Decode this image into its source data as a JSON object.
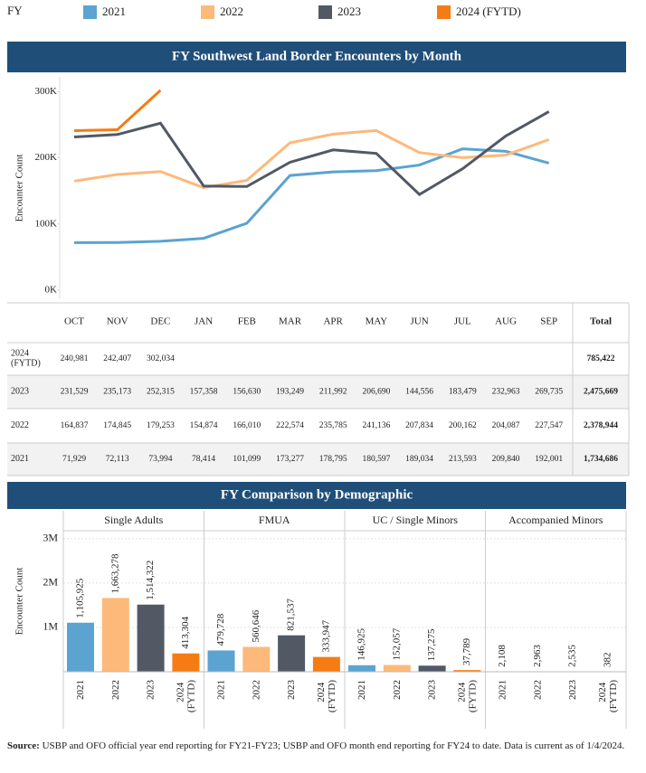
{
  "legend_label": "FY",
  "chart_data": [
    {
      "type": "line",
      "title": "FY Southwest Land Border Encounters by Month",
      "y_label": "Encounter Count",
      "categories": [
        "OCT",
        "NOV",
        "DEC",
        "JAN",
        "FEB",
        "MAR",
        "APR",
        "MAY",
        "JUN",
        "JUL",
        "AUG",
        "SEP"
      ],
      "ylim": [
        0,
        310000
      ],
      "yticks": [
        {
          "value": 0,
          "label": "0K"
        },
        {
          "value": 100000,
          "label": "100K"
        },
        {
          "value": 200000,
          "label": "200K"
        },
        {
          "value": 300000,
          "label": "300K"
        }
      ],
      "grid": false,
      "total_header": "Total",
      "series": [
        {
          "name": "2021",
          "color": "#5ba3d0",
          "values": [
            71929,
            72113,
            73994,
            78414,
            101099,
            173277,
            178795,
            180597,
            189034,
            213593,
            209840,
            192001
          ],
          "value_labels": [
            "71,929",
            "72,113",
            "73,994",
            "78,414",
            "101,099",
            "173,277",
            "178,795",
            "180,597",
            "189,034",
            "213,593",
            "209,840",
            "192,001"
          ],
          "total": "1,734,686"
        },
        {
          "name": "2022",
          "color": "#fdb97a",
          "values": [
            164837,
            174845,
            179253,
            154874,
            166010,
            222574,
            235785,
            241136,
            207834,
            200162,
            204087,
            227547
          ],
          "value_labels": [
            "164,837",
            "174,845",
            "179,253",
            "154,874",
            "166,010",
            "222,574",
            "235,785",
            "241,136",
            "207,834",
            "200,162",
            "204,087",
            "227,547"
          ],
          "total": "2,378,944"
        },
        {
          "name": "2023",
          "color": "#525965",
          "values": [
            231529,
            235173,
            252315,
            157358,
            156630,
            193249,
            211992,
            206690,
            144556,
            183479,
            232963,
            269735
          ],
          "value_labels": [
            "231,529",
            "235,173",
            "252,315",
            "157,358",
            "156,630",
            "193,249",
            "211,992",
            "206,690",
            "144,556",
            "183,479",
            "232,963",
            "269,735"
          ],
          "total": "2,475,669"
        },
        {
          "name": "2024 (FYTD)",
          "color": "#f57c14",
          "values": [
            240981,
            242407,
            302034,
            null,
            null,
            null,
            null,
            null,
            null,
            null,
            null,
            null
          ],
          "value_labels": [
            "240,981",
            "242,407",
            "302,034",
            null,
            null,
            null,
            null,
            null,
            null,
            null,
            null,
            null
          ],
          "total": "785,422"
        }
      ]
    },
    {
      "type": "bar",
      "title": "FY Comparison by Demographic",
      "y_label": "Encounter Count",
      "categories": [
        "Single Adults",
        "FMUA",
        "UC / Single Minors",
        "Accompanied Minors"
      ],
      "ylim": [
        0,
        3100000
      ],
      "yticks": [
        {
          "value": 1000000,
          "label": "1M"
        },
        {
          "value": 2000000,
          "label": "2M"
        },
        {
          "value": 3000000,
          "label": "3M"
        }
      ],
      "grid": true,
      "series": [
        {
          "name": "2021",
          "color": "#5ba3d0",
          "values": [
            1105925,
            479728,
            146925,
            2108
          ],
          "value_labels": [
            "1,105,925",
            "479,728",
            "146,925",
            "2,108"
          ]
        },
        {
          "name": "2022",
          "color": "#fdb97a",
          "values": [
            1663278,
            560646,
            152057,
            2963
          ],
          "value_labels": [
            "1,663,278",
            "560,646",
            "152,057",
            "2,963"
          ]
        },
        {
          "name": "2023",
          "color": "#525965",
          "values": [
            1514322,
            821537,
            137275,
            2535
          ],
          "value_labels": [
            "1,514,322",
            "821,537",
            "137,275",
            "2,535"
          ]
        },
        {
          "name": "2024 (FYTD)",
          "color": "#f57c14",
          "values": [
            413304,
            333947,
            37789,
            382
          ],
          "value_labels": [
            "413,304",
            "333,947",
            "37,789",
            "382"
          ]
        }
      ]
    }
  ],
  "source": {
    "label": "Source:",
    "text": "USBP and OFO official year end reporting for FY21-FY23; USBP and OFO month end reporting for FY24 to date. Data is current as of 1/4/2024."
  }
}
